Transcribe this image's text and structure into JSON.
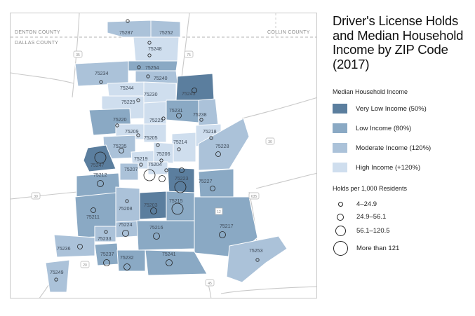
{
  "title": "Driver's License Holds and Median Household Income by ZIP Code (2017)",
  "counties": {
    "denton": "DENTON COUNTY",
    "dallas": "DALLAS COUNTY",
    "collin": "COLLIN COUNTY"
  },
  "highway_shields": [
    "35",
    "75",
    "30",
    "30",
    "20",
    "45",
    "635",
    "12"
  ],
  "income_legend": {
    "heading": "Median Household Income",
    "items": [
      {
        "label": "Very Low Income (50%)",
        "color": "#5b7e9e"
      },
      {
        "label": "Low Income (80%)",
        "color": "#8aa9c4"
      },
      {
        "label": "Moderate Income (120%)",
        "color": "#abc2d9"
      },
      {
        "label": "High Income (+120%)",
        "color": "#cfdeee"
      }
    ]
  },
  "holds_legend": {
    "heading": "Holds per 1,000 Residents",
    "items": [
      {
        "label": "4–24.9"
      },
      {
        "label": "24.9–56.1"
      },
      {
        "label": "56.1–120.5"
      },
      {
        "label": "More than 121"
      }
    ]
  },
  "zips": [
    {
      "code": "75287",
      "income": "moderate"
    },
    {
      "code": "75252",
      "income": "moderate"
    },
    {
      "code": "75248",
      "income": "high"
    },
    {
      "code": "75254",
      "income": "low"
    },
    {
      "code": "75240",
      "income": "moderate"
    },
    {
      "code": "75234",
      "income": "moderate"
    },
    {
      "code": "75244",
      "income": "high"
    },
    {
      "code": "75243",
      "income": "verylow"
    },
    {
      "code": "75230",
      "income": "high"
    },
    {
      "code": "75229",
      "income": "high"
    },
    {
      "code": "75231",
      "income": "low"
    },
    {
      "code": "75238",
      "income": "moderate"
    },
    {
      "code": "75225",
      "income": "high"
    },
    {
      "code": "75220",
      "income": "low"
    },
    {
      "code": "75209",
      "income": "high"
    },
    {
      "code": "75205",
      "income": "high"
    },
    {
      "code": "75218",
      "income": "high"
    },
    {
      "code": "75235",
      "income": "moderate"
    },
    {
      "code": "75214",
      "income": "high"
    },
    {
      "code": "75228",
      "income": "moderate"
    },
    {
      "code": "75206",
      "income": "high"
    },
    {
      "code": "75247",
      "income": "verylow"
    },
    {
      "code": "75219",
      "income": "high"
    },
    {
      "code": "75207",
      "income": "moderate"
    },
    {
      "code": "75204",
      "income": "high"
    },
    {
      "code": "75223",
      "income": "verylow"
    },
    {
      "code": "75227",
      "income": "low"
    },
    {
      "code": "75212",
      "income": "low"
    },
    {
      "code": "75211",
      "income": "low"
    },
    {
      "code": "75208",
      "income": "moderate"
    },
    {
      "code": "75203",
      "income": "verylow"
    },
    {
      "code": "75215",
      "income": "low"
    },
    {
      "code": "75224",
      "income": "moderate"
    },
    {
      "code": "75216",
      "income": "low"
    },
    {
      "code": "75217",
      "income": "low"
    },
    {
      "code": "75233",
      "income": "moderate"
    },
    {
      "code": "75236",
      "income": "moderate"
    },
    {
      "code": "75237",
      "income": "low"
    },
    {
      "code": "75232",
      "income": "low"
    },
    {
      "code": "75241",
      "income": "low"
    },
    {
      "code": "75253",
      "income": "moderate"
    },
    {
      "code": "75249",
      "income": "moderate"
    }
  ]
}
